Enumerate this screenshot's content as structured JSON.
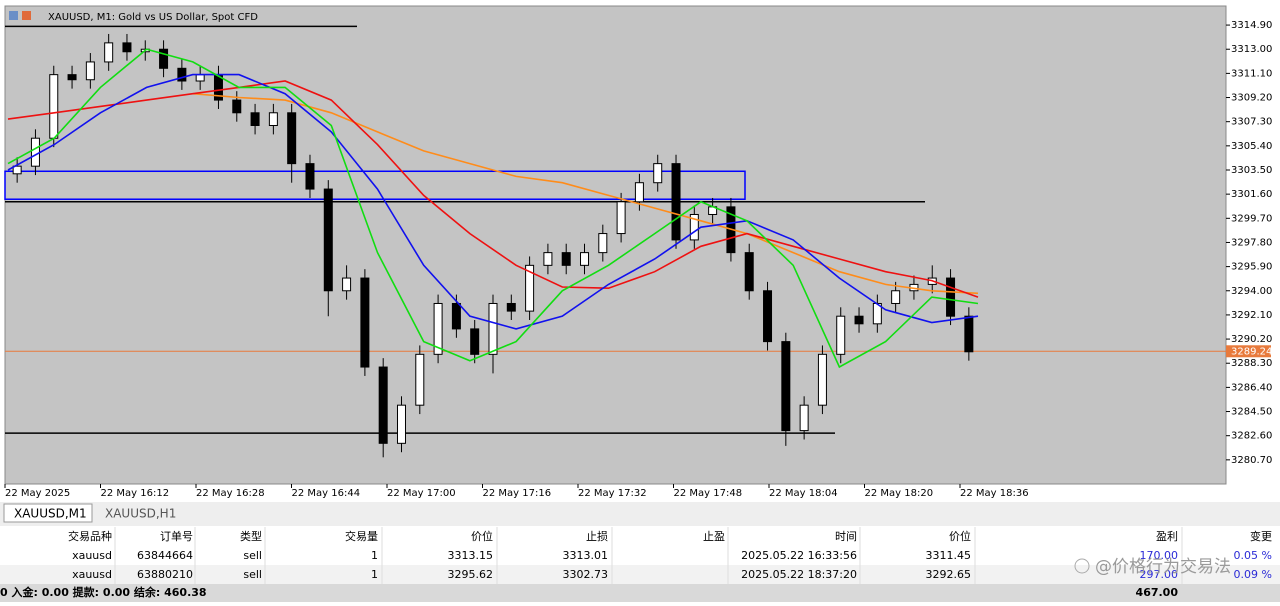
{
  "window": {
    "title": "XAUUSD, M1:  Gold vs US Dollar, Spot CFD",
    "tabs": [
      "XAUUSD,M1",
      "XAUUSD,H1"
    ]
  },
  "chart_data": {
    "type": "candlestick",
    "open": [
      3303.2,
      3303.8,
      3306,
      3311,
      3310.6,
      3312,
      3313.5,
      3312.8,
      3313,
      3311.5,
      3310.5,
      3311,
      3309,
      3308,
      3307,
      3308,
      3304,
      3302,
      3294,
      3295,
      3288,
      3282,
      3285,
      3289,
      3293,
      3291,
      3289,
      3293,
      3292.4,
      3296,
      3297,
      3296,
      3297,
      3298.5,
      3301,
      3302.5,
      3304,
      3298,
      3300,
      3300.6,
      3297,
      3294,
      3290,
      3283,
      3285,
      3289,
      3292,
      3291.4,
      3293,
      3294,
      3294.5,
      3295,
      3292
    ],
    "high": [
      3304.5,
      3306.7,
      3311.7,
      3311.7,
      3312.7,
      3314.2,
      3314.2,
      3313.7,
      3313.7,
      3312.2,
      3311.7,
      3311.7,
      3309.7,
      3308.7,
      3308.7,
      3308.7,
      3304.7,
      3302.7,
      3296,
      3295.7,
      3288.7,
      3285.7,
      3289.7,
      3293.7,
      3293.7,
      3291.7,
      3293.7,
      3293.7,
      3296.7,
      3297.7,
      3297.7,
      3297.7,
      3299.2,
      3301.7,
      3303.2,
      3304.7,
      3304.7,
      3300.7,
      3301.3,
      3301.3,
      3297.7,
      3294.7,
      3290.7,
      3285.7,
      3289.7,
      3292.7,
      3292.7,
      3293.7,
      3294.7,
      3295.2,
      3296,
      3295.7,
      3292.7
    ],
    "low": [
      3302.5,
      3303.1,
      3305.3,
      3309.9,
      3309.9,
      3311.3,
      3312.1,
      3312.1,
      3310.8,
      3309.8,
      3309.8,
      3308.3,
      3307.3,
      3306.3,
      3306.3,
      3302.5,
      3301.3,
      3292,
      3293.3,
      3287.3,
      3280.9,
      3281.3,
      3284.3,
      3288.3,
      3290.3,
      3288.3,
      3287.5,
      3291.7,
      3291.7,
      3295.3,
      3295.3,
      3295.3,
      3296.3,
      3297.8,
      3300.3,
      3301.8,
      3297.3,
      3297.3,
      3299.3,
      3296.3,
      3293.3,
      3289.3,
      3281.8,
      3282.3,
      3284.3,
      3288.3,
      3290.7,
      3290.7,
      3292.3,
      3293.3,
      3293.8,
      3291.3,
      3288.5
    ],
    "close": [
      3303.8,
      3306,
      3311,
      3310.6,
      3312,
      3313.5,
      3312.8,
      3313,
      3311.5,
      3310.5,
      3311,
      3309,
      3308,
      3307,
      3308,
      3304,
      3302,
      3294,
      3295,
      3288,
      3282,
      3285,
      3289,
      3293,
      3291,
      3289,
      3293,
      3292.4,
      3296,
      3297,
      3296,
      3297,
      3298.5,
      3301,
      3302.5,
      3304,
      3298,
      3300,
      3300.6,
      3297,
      3294,
      3290,
      3283,
      3285,
      3289,
      3292,
      3291.4,
      3293,
      3294,
      3294.5,
      3295,
      3292,
      3289.2
    ],
    "up_color": "#ffffff",
    "down_color": "#000000",
    "ylim": [
      3278.8,
      3316.4
    ],
    "yticks": [
      {
        "value": 3314.9,
        "label": "3314.90"
      },
      {
        "value": 3313,
        "label": "3313.00"
      },
      {
        "value": 3311.1,
        "label": "3311.10"
      },
      {
        "value": 3309.2,
        "label": "3309.20"
      },
      {
        "value": 3307.3,
        "label": "3307.30"
      },
      {
        "value": 3305.4,
        "label": "3305.40"
      },
      {
        "value": 3303.5,
        "label": "3303.50"
      },
      {
        "value": 3301.6,
        "label": "3301.60"
      },
      {
        "value": 3299.7,
        "label": "3299.70"
      },
      {
        "value": 3297.8,
        "label": "3297.80"
      },
      {
        "value": 3295.9,
        "label": "3295.90"
      },
      {
        "value": 3294,
        "label": "3294.00"
      },
      {
        "value": 3292.1,
        "label": "3292.10"
      },
      {
        "value": 3290.2,
        "label": "3290.20"
      },
      {
        "value": 3288.3,
        "label": "3288.30"
      },
      {
        "value": 3286.4,
        "label": "3286.40"
      },
      {
        "value": 3284.5,
        "label": "3284.50"
      },
      {
        "value": 3282.6,
        "label": "3282.60"
      },
      {
        "value": 3280.7,
        "label": "3280.70"
      }
    ],
    "xticks": [
      "22 May 2025",
      "22 May 16:12",
      "22 May 16:28",
      "22 May 16:44",
      "22 May 17:00",
      "22 May 17:16",
      "22 May 17:32",
      "22 May 17:48",
      "22 May 18:04",
      "22 May 18:20",
      "22 May 18:36"
    ],
    "lines": [
      {
        "color": "#ff8c1a",
        "values": [
          null,
          null,
          null,
          null,
          3309.5,
          3309.2,
          3309,
          3308,
          3306.5,
          3305,
          3304,
          3303,
          3302.5,
          3301.5,
          3300.5,
          3299.5,
          3298.5,
          3297,
          3295.5,
          3294.5,
          3294,
          3293.8
        ]
      },
      {
        "color": "#ee1111",
        "values": [
          3307.5,
          3308,
          3308.5,
          3309,
          3309.5,
          3310,
          3310.5,
          3309,
          3305.5,
          3301.5,
          3298.5,
          3296,
          3294.3,
          3294.2,
          3295.5,
          3297.5,
          3298.5,
          3297.5,
          3296.5,
          3295.5,
          3294.8,
          3293.5
        ]
      },
      {
        "color": "#1111ee",
        "values": [
          3303.5,
          3305.5,
          3308,
          3310,
          3311,
          3311,
          3309.5,
          3306.5,
          3302,
          3296,
          3292,
          3291,
          3292,
          3294.5,
          3296.5,
          3299,
          3299.5,
          3298,
          3295,
          3292.5,
          3291.5,
          3292
        ]
      },
      {
        "color": "#11dd11",
        "values": [
          3304,
          3306,
          3310,
          3313,
          3312,
          3310,
          3310,
          3307,
          3297,
          3290,
          3288.5,
          3290,
          3294,
          3296,
          3298.5,
          3301,
          3299.5,
          3296,
          3288,
          3290,
          3293.5,
          3293
        ]
      }
    ],
    "levels": [
      {
        "value": 3314.8,
        "color": "#000000"
      },
      {
        "value": 3301,
        "color": "#000000"
      },
      {
        "value": 3282.8,
        "color": "#000000"
      }
    ],
    "box": {
      "top": 3303.4,
      "bottom": 3301.2,
      "color": "#0000ff"
    },
    "current_price": {
      "value": 3289.24,
      "label": "3289.24",
      "color": "#e87a3c"
    }
  },
  "table": {
    "header": [
      "交易品种",
      "订单号",
      "类型",
      "交易量",
      "价位",
      "止损",
      "止盈",
      "时间",
      "价位",
      "盈利",
      "变更"
    ],
    "rows": [
      [
        "xauusd",
        "63844664",
        "sell",
        "1",
        "3313.15",
        "3313.01",
        null,
        "2025.05.22 16:33:56",
        "3311.45",
        "170.00",
        "0.05 %"
      ],
      [
        "xauusd",
        "63880210",
        "sell",
        "1",
        "3295.62",
        "3302.73",
        null,
        "2025.05.22 18:37:20",
        "3292.65",
        "297.00",
        "0.09 %"
      ]
    ],
    "footer": {
      "summary": "0 入金: 0.00 提款: 0.00 结余: 460.38",
      "total": "467.00"
    }
  },
  "watermark": "@价格行为交易法"
}
